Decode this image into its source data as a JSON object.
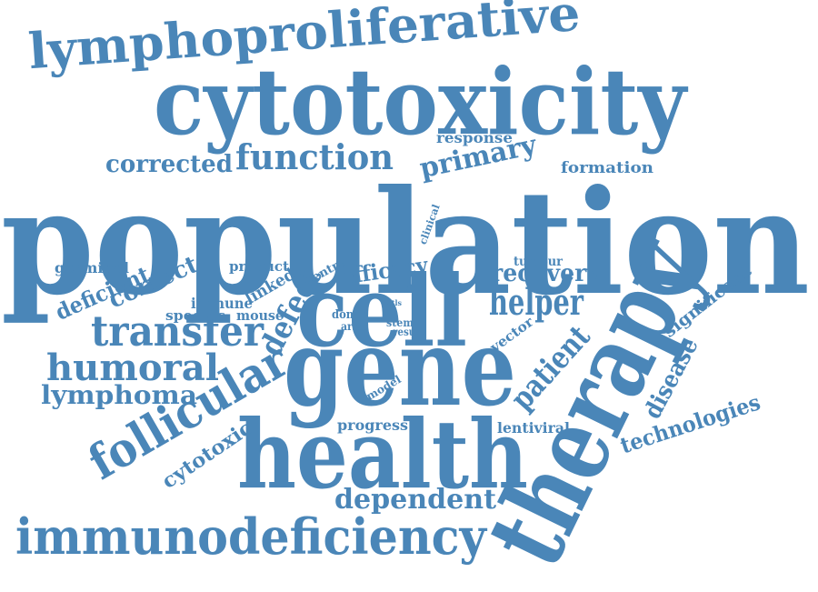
{
  "color": "#4a86b8",
  "words": [
    {
      "text": "population"
    },
    {
      "text": "cytotoxicity"
    },
    {
      "text": "lymphoproliferative"
    },
    {
      "text": "health"
    },
    {
      "text": "therapy"
    },
    {
      "text": "gene"
    },
    {
      "text": "cell"
    },
    {
      "text": "immunodeficiency"
    },
    {
      "text": "follicular"
    },
    {
      "text": "function"
    },
    {
      "text": "corrected"
    },
    {
      "text": "primary"
    },
    {
      "text": "response"
    },
    {
      "text": "formation"
    },
    {
      "text": "transfer"
    },
    {
      "text": "humoral"
    },
    {
      "text": "lymphoma"
    },
    {
      "text": "dependent"
    },
    {
      "text": "defect"
    },
    {
      "text": "helper"
    },
    {
      "text": "recovery"
    },
    {
      "text": "efficacy"
    },
    {
      "text": "patient"
    },
    {
      "text": "disease"
    },
    {
      "text": "technologies"
    },
    {
      "text": "significant"
    },
    {
      "text": "deficient"
    },
    {
      "text": "correct"
    },
    {
      "text": "germinal"
    },
    {
      "text": "product"
    },
    {
      "text": "linked"
    },
    {
      "text": "centre"
    },
    {
      "text": "immune"
    },
    {
      "text": "specific"
    },
    {
      "text": "mouse"
    },
    {
      "text": "cytotoxic"
    },
    {
      "text": "progress"
    },
    {
      "text": "lentiviral"
    },
    {
      "text": "vector"
    },
    {
      "text": "tumour"
    },
    {
      "text": "clinical"
    },
    {
      "text": "vitro"
    },
    {
      "text": "ctls"
    },
    {
      "text": "donor"
    },
    {
      "text": "arise"
    },
    {
      "text": "stem"
    },
    {
      "text": "result"
    },
    {
      "text": "model"
    }
  ]
}
